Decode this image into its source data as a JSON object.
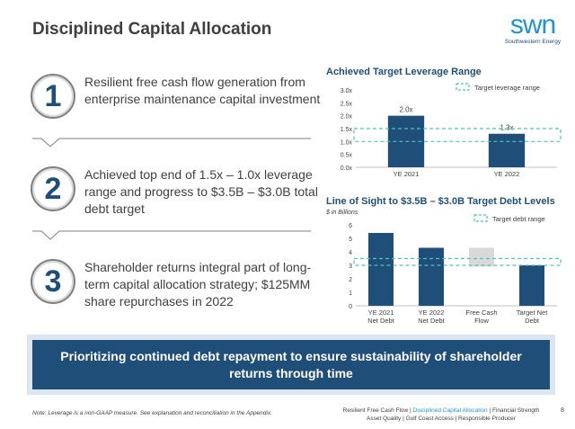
{
  "header": {
    "title": "Disciplined Capital Allocation",
    "logo_word": "swn",
    "logo_sub": "Southwestern Energy"
  },
  "items": [
    {
      "number": "1",
      "text": "Resilient free cash flow generation from enterprise maintenance capital investment"
    },
    {
      "number": "2",
      "text": "Achieved top end of 1.5x – 1.0x leverage range and progress to $3.5B – $3.0B total debt target"
    },
    {
      "number": "3",
      "text": "Shareholder returns integral part of long-term capital allocation strategy; $125MM share repurchases in 2022"
    }
  ],
  "banner": {
    "text": "Prioritizing continued debt repayment to ensure sustainability of shareholder returns through time"
  },
  "note": "Note: Leverage is a non-GAAP measure. See explanation and reconciliation in the Appendix.",
  "footer": {
    "line1_a": "Resilient Free Cash Flow | ",
    "line1_active": "Disciplined Capital Allocation",
    "line1_b": " | Financial Strength",
    "line2": "Asset Quality | Gulf Coast Access | Responsible Producer",
    "page": "8"
  },
  "colors": {
    "navy": "#1f4e79",
    "teal_dash": "#4fc3b4",
    "gray_bar": "#d9d9d9",
    "brand_blue": "#1f94d2"
  },
  "chart_data": [
    {
      "type": "bar",
      "title": "Achieved Target Leverage Range",
      "categories": [
        "YE 2021",
        "YE 2022"
      ],
      "values": [
        2.0,
        1.3
      ],
      "data_labels": [
        "2.0x",
        "1.3x"
      ],
      "yticks": [
        "0.0x",
        "0.5x",
        "1.0x",
        "1.5x",
        "2.0x",
        "2.5x",
        "3.0x"
      ],
      "ylim": [
        0,
        3.0
      ],
      "band": [
        1.0,
        1.5
      ],
      "legend": "Target leverage range",
      "legend_position": "top-right",
      "grid": false
    },
    {
      "type": "bar",
      "title": "Line of Sight to $3.5B – $3.0B Target Debt Levels",
      "subtitle": "$ in Billions",
      "categories": [
        "YE 2021 Net Debt",
        "YE 2022 Net Debt",
        "Free Cash Flow",
        "Target Net Debt"
      ],
      "values": [
        5.4,
        4.3,
        1.4,
        3.0
      ],
      "bar_bases": [
        0,
        0,
        2.9,
        0
      ],
      "bar_colors": [
        "#1f4e79",
        "#1f4e79",
        "#d9d9d9",
        "#1f4e79"
      ],
      "yticks": [
        "0",
        "1",
        "2",
        "3",
        "4",
        "5",
        "6"
      ],
      "ylim": [
        0,
        6
      ],
      "band": [
        3.0,
        3.5
      ],
      "legend": "Target debt range",
      "legend_position": "top-right",
      "grid": false
    }
  ]
}
